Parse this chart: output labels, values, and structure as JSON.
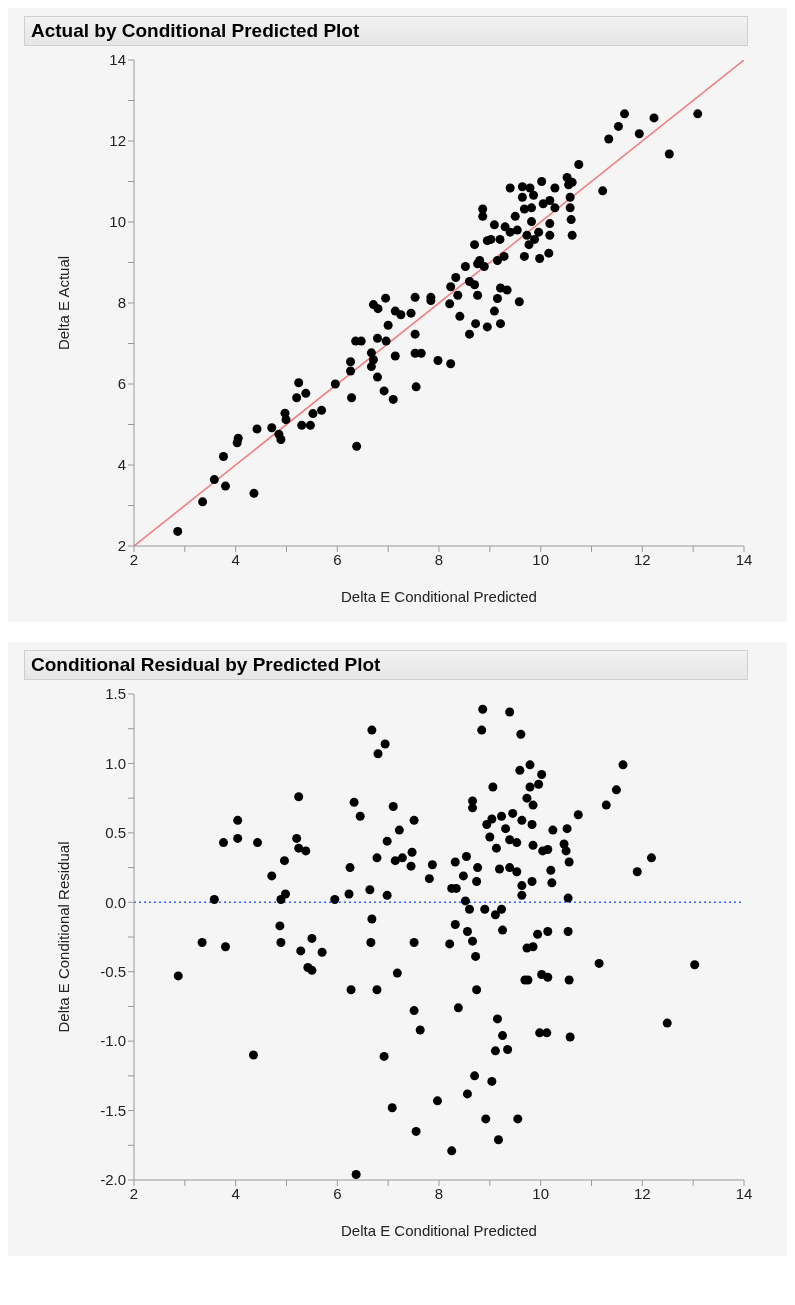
{
  "chart_data": [
    {
      "type": "scatter",
      "title": "Actual by Conditional Predicted Plot",
      "xlabel": "Delta E Conditional Predicted",
      "ylabel": "Delta E Actual",
      "xlim": [
        2,
        14
      ],
      "xticks": [
        2,
        {
          "value": 3,
          "label": null
        },
        4,
        {
          "value": 5,
          "label": null
        },
        6,
        {
          "value": 7,
          "label": null
        },
        8,
        {
          "value": 9,
          "label": null
        },
        10,
        {
          "value": 11,
          "label": null
        },
        12,
        {
          "value": 13,
          "label": null
        },
        14
      ],
      "ylim": [
        2,
        14
      ],
      "yticks": [
        2,
        {
          "value": 3,
          "label": null
        },
        4,
        {
          "value": 5,
          "label": null
        },
        6,
        {
          "value": 7,
          "label": null
        },
        8,
        {
          "value": 9,
          "label": null
        },
        10,
        {
          "value": 11,
          "label": null
        },
        12,
        {
          "value": 13,
          "label": null
        },
        14
      ],
      "series": [
        {
          "type": "scatter",
          "marker": "circle",
          "color": "#000000",
          "x": [
            2.86,
            3.35,
            3.58,
            3.8,
            3.76,
            4.03,
            4.05,
            4.36,
            4.42,
            4.71,
            4.89,
            4.85,
            4.97,
            4.99,
            5.24,
            5.2,
            5.38,
            5.3,
            5.47,
            5.52,
            5.69,
            5.96,
            6.26,
            6.26,
            6.28,
            6.38,
            6.36,
            6.47,
            6.67,
            6.71,
            6.67,
            6.79,
            6.92,
            7.1,
            6.71,
            6.8,
            6.95,
            6.79,
            6.96,
            7.0,
            7.14,
            7.14,
            7.25,
            7.45,
            7.53,
            7.53,
            7.53,
            7.65,
            7.55,
            7.84,
            7.84,
            7.98,
            8.23,
            8.21,
            8.23,
            8.33,
            8.37,
            8.41,
            8.52,
            8.6,
            8.7,
            8.76,
            8.6,
            8.72,
            8.7,
            8.8,
            8.76,
            8.89,
            8.95,
            9.09,
            9.15,
            9.21,
            9.34,
            9.21,
            9.58,
            8.86,
            8.86,
            8.95,
            9.09,
            9.02,
            9.2,
            9.15,
            9.28,
            9.3,
            9.4,
            9.4,
            9.5,
            9.54,
            9.64,
            9.64,
            9.68,
            9.68,
            9.73,
            9.77,
            9.79,
            9.82,
            9.82,
            9.86,
            9.88,
            9.96,
            9.98,
            10.02,
            10.05,
            10.16,
            10.18,
            10.18,
            10.18,
            10.28,
            10.28,
            10.52,
            10.55,
            10.58,
            10.58,
            10.6,
            10.62,
            10.62,
            10.75,
            11.22,
            11.34,
            11.53,
            11.65,
            11.94,
            12.23,
            12.53,
            13.09
          ],
          "values": [
            2.36,
            3.09,
            3.64,
            3.48,
            4.21,
            4.55,
            4.66,
            3.3,
            4.89,
            4.92,
            4.63,
            4.76,
            5.28,
            5.12,
            6.03,
            5.66,
            5.77,
            4.98,
            4.98,
            5.27,
            5.35,
            6.0,
            6.55,
            6.32,
            5.66,
            4.46,
            7.06,
            7.06,
            6.77,
            6.6,
            6.43,
            6.17,
            5.83,
            5.62,
            7.96,
            7.86,
            8.12,
            7.13,
            7.06,
            7.45,
            7.8,
            6.69,
            7.71,
            7.75,
            8.14,
            7.23,
            6.76,
            6.76,
            5.93,
            8.14,
            8.06,
            6.58,
            6.5,
            7.98,
            8.4,
            8.63,
            8.19,
            7.67,
            8.9,
            8.53,
            8.45,
            8.19,
            7.23,
            7.49,
            9.44,
            9.05,
            8.97,
            8.9,
            7.41,
            7.8,
            8.11,
            8.37,
            8.32,
            7.49,
            8.03,
            10.32,
            10.14,
            9.54,
            9.93,
            9.57,
            9.57,
            9.05,
            9.15,
            9.88,
            9.75,
            10.84,
            10.14,
            9.8,
            10.87,
            10.61,
            10.32,
            9.15,
            9.67,
            9.44,
            10.84,
            10.35,
            10.01,
            10.66,
            9.57,
            9.75,
            9.1,
            11.0,
            10.45,
            9.23,
            9.96,
            9.67,
            10.53,
            10.84,
            10.35,
            11.1,
            10.92,
            10.61,
            10.35,
            10.06,
            9.67,
            10.98,
            11.42,
            10.77,
            12.05,
            12.36,
            12.67,
            12.18,
            12.57,
            11.68,
            12.67
          ]
        },
        {
          "type": "line",
          "color": "#f08080",
          "x": [
            2,
            14
          ],
          "values": [
            2,
            14
          ]
        }
      ]
    },
    {
      "type": "scatter",
      "title": "Conditional Residual by Predicted Plot",
      "xlabel": "Delta E Conditional Predicted",
      "ylabel": "Delta E Conditional Residual",
      "xlim": [
        2,
        14
      ],
      "xticks": [
        2,
        {
          "value": 3,
          "label": null
        },
        4,
        {
          "value": 5,
          "label": null
        },
        6,
        {
          "value": 7,
          "label": null
        },
        8,
        {
          "value": 9,
          "label": null
        },
        10,
        {
          "value": 11,
          "label": null
        },
        12,
        {
          "value": 13,
          "label": null
        },
        14
      ],
      "ylim": [
        -2,
        1.5
      ],
      "yticks": [
        {
          "value": -2,
          "label": "-2.0"
        },
        {
          "value": -1.75,
          "label": null
        },
        -1.5,
        {
          "value": -1.25,
          "label": null
        },
        {
          "value": -1,
          "label": "-1.0"
        },
        {
          "value": -0.75,
          "label": null
        },
        -0.5,
        {
          "value": -0.25,
          "label": null
        },
        {
          "value": 0,
          "label": "0.0"
        },
        {
          "value": 0.25,
          "label": null
        },
        0.5,
        {
          "value": 0.75,
          "label": null
        },
        {
          "value": 1,
          "label": "1.0"
        },
        {
          "value": 1.25,
          "label": null
        },
        1.5
      ],
      "ref_lines": [
        {
          "axis": "y",
          "value": 0,
          "color": "#3366ff",
          "line_style": "dotted"
        }
      ],
      "series": [
        {
          "type": "scatter",
          "marker": "circle",
          "color": "#000000",
          "x": [
            2.87,
            3.34,
            3.58,
            3.76,
            3.8,
            4.04,
            4.04,
            4.35,
            4.43,
            4.71,
            4.89,
            4.98,
            4.87,
            4.89,
            4.96,
            5.24,
            5.2,
            5.24,
            5.38,
            5.28,
            5.5,
            5.7,
            5.42,
            5.5,
            5.95,
            6.33,
            6.45,
            6.25,
            6.23,
            6.27,
            6.37,
            6.68,
            6.94,
            6.8,
            6.64,
            6.78,
            6.68,
            6.66,
            6.78,
            6.98,
            6.98,
            7.1,
            7.22,
            7.14,
            7.28,
            6.92,
            7.18,
            7.08,
            7.45,
            7.47,
            7.51,
            7.51,
            7.51,
            7.63,
            7.55,
            7.87,
            7.81,
            7.97,
            8.21,
            8.25,
            8.34,
            8.32,
            8.32,
            8.25,
            8.38,
            8.48,
            8.54,
            8.52,
            8.6,
            8.56,
            8.66,
            8.72,
            8.74,
            8.74,
            8.76,
            8.66,
            8.66,
            8.56,
            8.7,
            8.86,
            8.84,
            8.9,
            8.94,
            9.04,
            9.0,
            9.13,
            9.06,
            9.19,
            9.11,
            9.23,
            9.25,
            9.15,
            9.25,
            9.11,
            9.35,
            9.04,
            8.92,
            9.17,
            9.55,
            9.23,
            9.31,
            9.39,
            9.45,
            9.53,
            9.39,
            9.53,
            9.63,
            9.63,
            9.63,
            9.83,
            9.83,
            9.85,
            9.73,
            9.85,
            9.79,
            9.59,
            9.79,
            9.61,
            9.39,
            9.73,
            9.85,
            9.69,
            9.75,
            10.02,
            9.96,
            10.04,
            10.14,
            10.2,
            10.22,
            10.24,
            10.52,
            10.46,
            10.5,
            10.56,
            10.54,
            10.74,
            11.29,
            11.49,
            11.62,
            11.9,
            12.18,
            9.94,
            10.14,
            10.54,
            10.02,
            10.14,
            10.56,
            9.98,
            10.12,
            10.58,
            11.15,
            12.49,
            13.03
          ],
          "values": [
            -0.53,
            -0.29,
            0.02,
            0.43,
            -0.32,
            0.59,
            0.46,
            -1.1,
            0.43,
            0.19,
            0.02,
            0.06,
            -0.17,
            -0.29,
            0.3,
            0.76,
            0.46,
            0.39,
            0.37,
            -0.35,
            -0.26,
            -0.36,
            -0.47,
            -0.49,
            0.02,
            0.72,
            0.62,
            0.25,
            0.06,
            -0.63,
            -1.96,
            1.24,
            1.14,
            1.07,
            0.09,
            0.32,
            -0.12,
            -0.29,
            -0.63,
            0.05,
            0.44,
            0.69,
            0.52,
            0.3,
            0.32,
            -1.11,
            -0.51,
            -1.48,
            0.26,
            0.36,
            0.59,
            -0.29,
            -0.78,
            -0.92,
            -1.65,
            0.27,
            0.17,
            -1.43,
            -0.3,
            0.1,
            0.1,
            0.29,
            -0.16,
            -1.79,
            -0.76,
            0.19,
            0.33,
            0.01,
            -0.05,
            -0.21,
            -0.28,
            -0.39,
            -0.63,
            0.15,
            0.25,
            0.73,
            0.68,
            -1.38,
            -1.25,
            1.39,
            1.24,
            -0.05,
            0.56,
            0.6,
            0.47,
            0.39,
            0.83,
            0.24,
            -0.09,
            -0.05,
            -0.2,
            -0.84,
            -0.96,
            -1.07,
            -1.06,
            -1.29,
            -1.56,
            -1.71,
            -1.56,
            0.62,
            0.53,
            0.45,
            0.64,
            0.43,
            0.25,
            0.22,
            0.59,
            0.12,
            0.05,
            0.56,
            0.15,
            0.41,
            0.75,
            0.7,
            0.83,
            0.95,
            0.99,
            1.21,
            1.37,
            -0.33,
            -0.32,
            -0.56,
            -0.56,
            0.92,
            0.85,
            0.37,
            0.38,
            0.23,
            0.14,
            0.52,
            0.53,
            0.42,
            0.37,
            0.29,
            0.03,
            0.63,
            0.7,
            0.81,
            0.99,
            0.22,
            0.32,
            -0.23,
            -0.21,
            -0.21,
            -0.52,
            -0.54,
            -0.56,
            -0.94,
            -0.94,
            -0.97,
            -0.44,
            -0.87,
            -0.45
          ]
        }
      ]
    }
  ]
}
